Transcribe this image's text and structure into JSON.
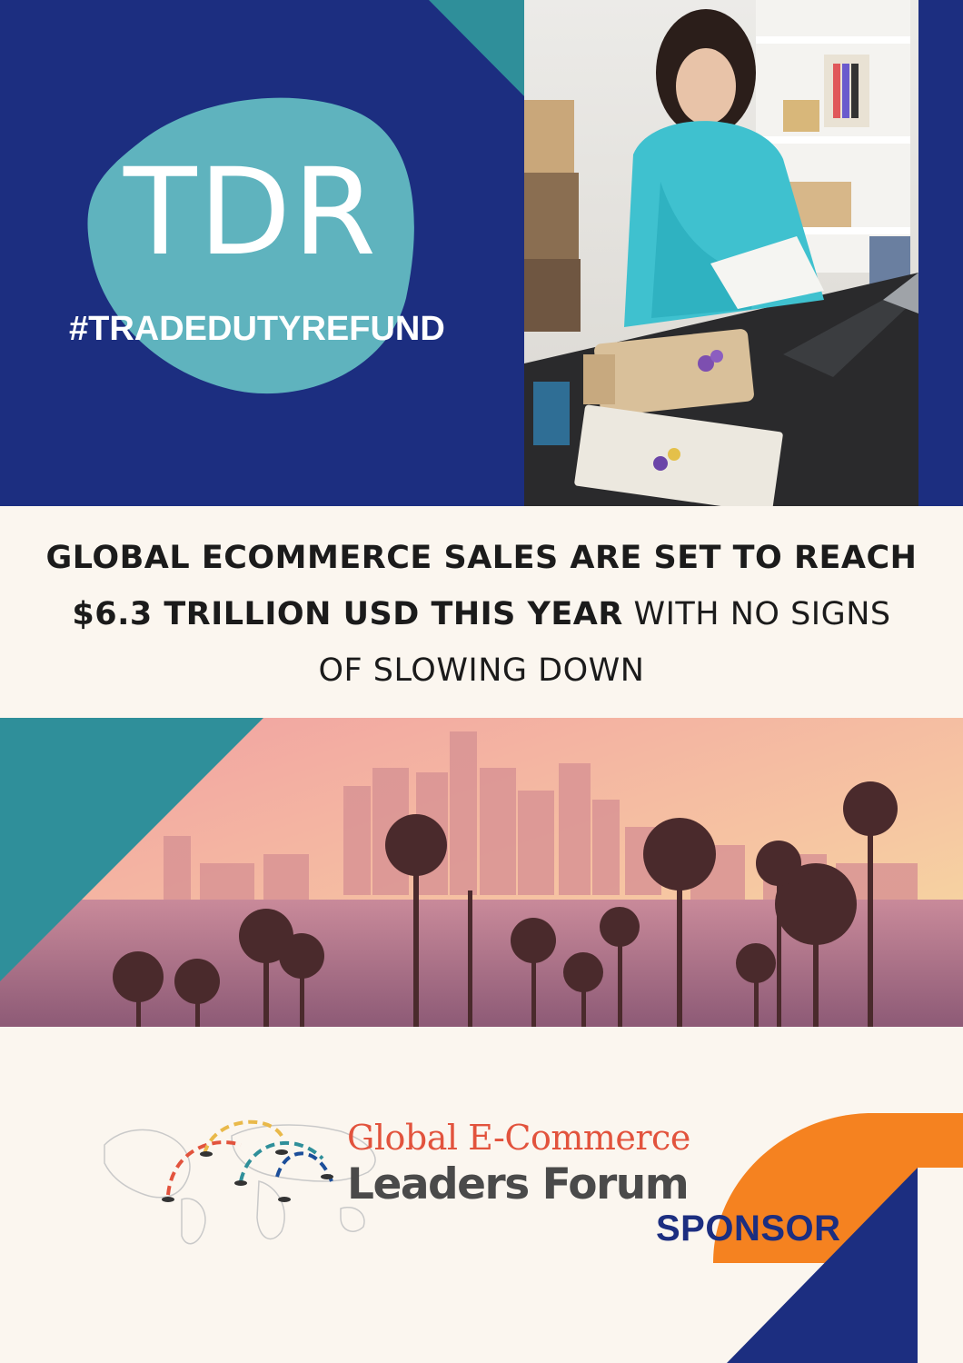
{
  "brand": {
    "logo_text": "TDR",
    "hashtag": "#TRADEDUTYREFUND"
  },
  "headline": {
    "bold_1": "GLOBAL ECOMMERCE SALES ARE SET TO REACH",
    "bold_2": "$6.3 TRILLION USD THIS YEAR",
    "light_2": " WITH NO SIGNS",
    "light_3": "OF SLOWING DOWN"
  },
  "forum": {
    "line1": "Global E-Commerce",
    "line2": "Leaders Forum"
  },
  "sponsor_label": "SPONSOR",
  "colors": {
    "navy": "#1c2e80",
    "teal": "#2f8f9a",
    "light_teal": "#5fb3be",
    "orange": "#f58220",
    "cream": "#fbf6ef"
  },
  "images": {
    "top_photo": "woman-packing-ecommerce-orders-photo",
    "city_photo": "los-angeles-skyline-palm-trees-photo"
  }
}
